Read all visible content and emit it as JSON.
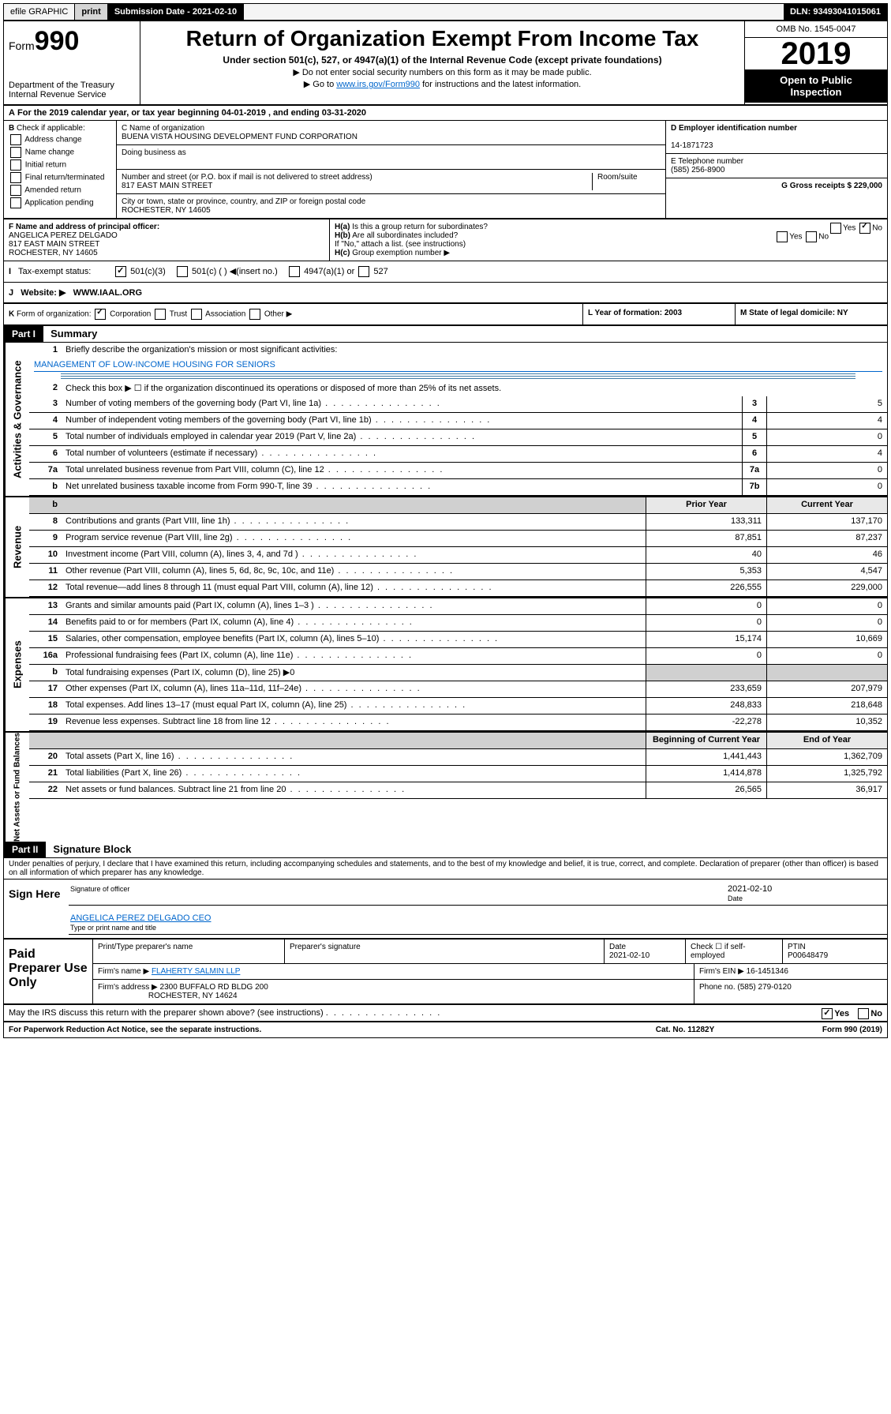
{
  "topbar": {
    "efile": "efile GRAPHIC",
    "print": "print",
    "subm": "Submission Date - 2021-02-10",
    "dln": "DLN: 93493041015061"
  },
  "header": {
    "form_prefix": "Form",
    "form_num": "990",
    "dept": "Department of the Treasury",
    "irs": "Internal Revenue Service",
    "title": "Return of Organization Exempt From Income Tax",
    "sub": "Under section 501(c), 527, or 4947(a)(1) of the Internal Revenue Code (except private foundations)",
    "note1": "▶ Do not enter social security numbers on this form as it may be made public.",
    "note2": "▶ Go to ",
    "note2_link": "www.irs.gov/Form990",
    "note2_b": " for instructions and the latest information.",
    "omb": "OMB No. 1545-0047",
    "year": "2019",
    "open": "Open to Public",
    "insp": "Inspection"
  },
  "a": {
    "text": "For the 2019 calendar year, or tax year beginning 04-01-2019    , and ending 03-31-2020"
  },
  "b": {
    "label": "Check if applicable:",
    "addr": "Address change",
    "name": "Name change",
    "init": "Initial return",
    "final": "Final return/terminated",
    "amend": "Amended return",
    "app": "Application pending"
  },
  "c": {
    "name_lbl": "C Name of organization",
    "name": "BUENA VISTA HOUSING DEVELOPMENT FUND CORPORATION",
    "dba_lbl": "Doing business as",
    "addr_lbl": "Number and street (or P.O. box if mail is not delivered to street address)",
    "room": "Room/suite",
    "addr": "817 EAST MAIN STREET",
    "city_lbl": "City or town, state or province, country, and ZIP or foreign postal code",
    "city": "ROCHESTER, NY  14605"
  },
  "d": {
    "lbl": "D Employer identification number",
    "val": "14-1871723"
  },
  "e": {
    "lbl": "E Telephone number",
    "val": "(585) 256-8900"
  },
  "g": {
    "lbl": "G Gross receipts $ 229,000"
  },
  "f": {
    "lbl": "F  Name and address of principal officer:",
    "n": "ANGELICA PEREZ DELGADO",
    "a": "817 EAST MAIN STREET",
    "c": "ROCHESTER, NY  14605"
  },
  "h": {
    "a": "Is this a group return for subordinates?",
    "b": "Are all subordinates included?",
    "bnote": "If \"No,\" attach a list. (see instructions)",
    "c": "Group exemption number ▶",
    "ha": "H(a)",
    "hb": "H(b)",
    "hc": "H(c)",
    "y": "Yes",
    "n": "No"
  },
  "tax": {
    "lbl": "Tax-exempt status:",
    "c3": "501(c)(3)",
    "c": "501(c) ( ) ◀(insert no.)",
    "a1": "4947(a)(1) or",
    "s527": "527"
  },
  "j": {
    "lbl": "Website: ▶",
    "val": "WWW.IAAL.ORG"
  },
  "k": {
    "lbl": "Form of organization:",
    "corp": "Corporation",
    "trust": "Trust",
    "assoc": "Association",
    "other": "Other ▶"
  },
  "l": {
    "lbl": "L Year of formation: 2003"
  },
  "m": {
    "lbl": "M State of legal domicile: NY"
  },
  "part1": {
    "lbl": "Part I",
    "title": "Summary"
  },
  "summary": {
    "q1": "Briefly describe the organization's mission or most significant activities:",
    "mission": "MANAGEMENT OF LOW-INCOME HOUSING FOR SENIORS",
    "q2": "Check this box ▶ ☐  if the organization discontinued its operations or disposed of more than 25% of its net assets.",
    "rows": [
      {
        "n": "3",
        "t": "Number of voting members of the governing body (Part VI, line 1a)",
        "box": "3",
        "v": "5"
      },
      {
        "n": "4",
        "t": "Number of independent voting members of the governing body (Part VI, line 1b)",
        "box": "4",
        "v": "4"
      },
      {
        "n": "5",
        "t": "Total number of individuals employed in calendar year 2019 (Part V, line 2a)",
        "box": "5",
        "v": "0"
      },
      {
        "n": "6",
        "t": "Total number of volunteers (estimate if necessary)",
        "box": "6",
        "v": "4"
      },
      {
        "n": "7a",
        "t": "Total unrelated business revenue from Part VIII, column (C), line 12",
        "box": "7a",
        "v": "0"
      },
      {
        "n": "b",
        "t": "Net unrelated business taxable income from Form 990-T, line 39",
        "box": "7b",
        "v": "0"
      }
    ],
    "py": "Prior Year",
    "cy": "Current Year",
    "rev": [
      {
        "n": "8",
        "t": "Contributions and grants (Part VIII, line 1h)",
        "p": "133,311",
        "c": "137,170"
      },
      {
        "n": "9",
        "t": "Program service revenue (Part VIII, line 2g)",
        "p": "87,851",
        "c": "87,237"
      },
      {
        "n": "10",
        "t": "Investment income (Part VIII, column (A), lines 3, 4, and 7d )",
        "p": "40",
        "c": "46"
      },
      {
        "n": "11",
        "t": "Other revenue (Part VIII, column (A), lines 5, 6d, 8c, 9c, 10c, and 11e)",
        "p": "5,353",
        "c": "4,547"
      },
      {
        "n": "12",
        "t": "Total revenue—add lines 8 through 11 (must equal Part VIII, column (A), line 12)",
        "p": "226,555",
        "c": "229,000"
      }
    ],
    "exp": [
      {
        "n": "13",
        "t": "Grants and similar amounts paid (Part IX, column (A), lines 1–3 )",
        "p": "0",
        "c": "0"
      },
      {
        "n": "14",
        "t": "Benefits paid to or for members (Part IX, column (A), line 4)",
        "p": "0",
        "c": "0"
      },
      {
        "n": "15",
        "t": "Salaries, other compensation, employee benefits (Part IX, column (A), lines 5–10)",
        "p": "15,174",
        "c": "10,669"
      },
      {
        "n": "16a",
        "t": "Professional fundraising fees (Part IX, column (A), line 11e)",
        "p": "0",
        "c": "0"
      },
      {
        "n": "b",
        "t": "Total fundraising expenses (Part IX, column (D), line 25) ▶0",
        "p": "",
        "c": "",
        "shade": true
      },
      {
        "n": "17",
        "t": "Other expenses (Part IX, column (A), lines 11a–11d, 11f–24e)",
        "p": "233,659",
        "c": "207,979"
      },
      {
        "n": "18",
        "t": "Total expenses. Add lines 13–17 (must equal Part IX, column (A), line 25)",
        "p": "248,833",
        "c": "218,648"
      },
      {
        "n": "19",
        "t": "Revenue less expenses. Subtract line 18 from line 12",
        "p": "-22,278",
        "c": "10,352"
      }
    ],
    "bcy": "Beginning of Current Year",
    "ey": "End of Year",
    "net": [
      {
        "n": "20",
        "t": "Total assets (Part X, line 16)",
        "p": "1,441,443",
        "c": "1,362,709"
      },
      {
        "n": "21",
        "t": "Total liabilities (Part X, line 26)",
        "p": "1,414,878",
        "c": "1,325,792"
      },
      {
        "n": "22",
        "t": "Net assets or fund balances. Subtract line 21 from line 20",
        "p": "26,565",
        "c": "36,917"
      }
    ]
  },
  "sidelabs": {
    "gov": "Activities & Governance",
    "rev": "Revenue",
    "exp": "Expenses",
    "net": "Net Assets or Fund Balances"
  },
  "part2": {
    "lbl": "Part II",
    "title": "Signature Block",
    "decl": "Under penalties of perjury, I declare that I have examined this return, including accompanying schedules and statements, and to the best of my knowledge and belief, it is true, correct, and complete. Declaration of preparer (other than officer) is based on all information of which preparer has any knowledge."
  },
  "sign": {
    "here": "Sign Here",
    "sig": "Signature of officer",
    "date": "Date",
    "dv": "2021-02-10",
    "name": "ANGELICA PEREZ DELGADO  CEO",
    "type": "Type or print name and title"
  },
  "paid": {
    "lbl": "Paid Preparer Use Only",
    "h1": "Print/Type preparer's name",
    "h2": "Preparer's signature",
    "h3": "Date",
    "h4": "Check ☐ if self-employed",
    "h5": "PTIN",
    "date": "2021-02-10",
    "ptin": "P00648479",
    "firm_lbl": "Firm's name    ▶",
    "firm": "FLAHERTY SALMIN LLP",
    "ein_lbl": "Firm's EIN ▶",
    "ein": "16-1451346",
    "addr_lbl": "Firm's address ▶",
    "addr": "2300 BUFFALO RD BLDG 200",
    "city": "ROCHESTER, NY  14624",
    "ph_lbl": "Phone no.",
    "ph": "(585) 279-0120"
  },
  "discuss": {
    "q": "May the IRS discuss this return with the preparer shown above? (see instructions)",
    "y": "Yes",
    "n": "No"
  },
  "foot": {
    "l": "For Paperwork Reduction Act Notice, see the separate instructions.",
    "m": "Cat. No. 11282Y",
    "r": "Form 990 (2019)"
  }
}
